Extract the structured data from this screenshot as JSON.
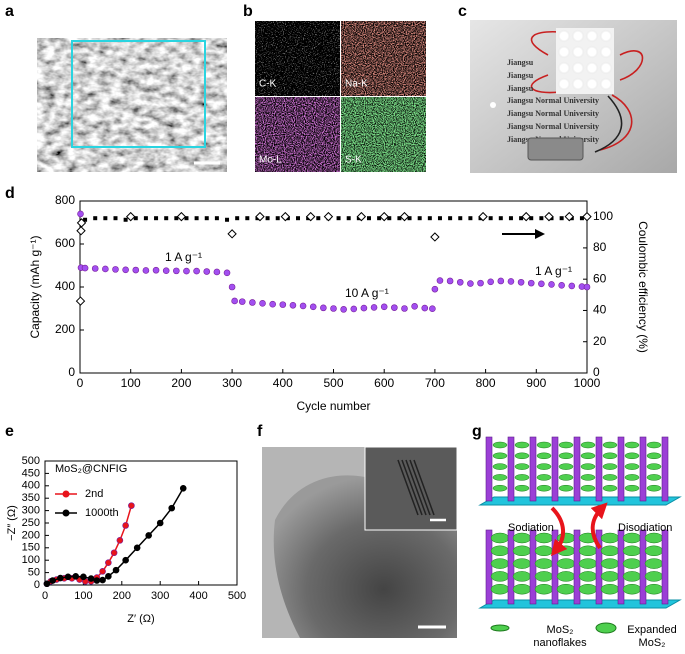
{
  "panels": {
    "labels": [
      "a",
      "b",
      "c",
      "d",
      "e",
      "f",
      "g"
    ],
    "b_maps": [
      "C-K",
      "Na-K",
      "Mo-L",
      "S-K"
    ],
    "c_photo_text": [
      "Jiangsu",
      "Jiangsu",
      "Jiangsu",
      "Jiangsu Normal University",
      "Jiangsu Normal University",
      "Jiangsu Normal University",
      "Jiangsu Normal University"
    ],
    "g_arrows": [
      "Sodiation",
      "Disodiation"
    ],
    "g_legend": [
      [
        "MoS₂",
        "nanoflakes"
      ],
      [
        "Expanded",
        "MoS₂"
      ]
    ]
  },
  "chart_data": [
    {
      "type": "scatter",
      "x_label": "Cycle number",
      "y_label": "Capacity (mAh g⁻¹)",
      "y2_label": "Coulombic efficiency (%)",
      "annotations": [
        "1 A g⁻¹",
        "10 A g⁻¹",
        "1 A g⁻¹"
      ],
      "xlim": [
        0,
        1000
      ],
      "xticks": [
        0,
        100,
        200,
        300,
        400,
        500,
        600,
        700,
        800,
        900,
        1000
      ],
      "ylim": [
        0,
        800
      ],
      "yticks": [
        0,
        200,
        400,
        600,
        800
      ],
      "y2lim": [
        0,
        110
      ],
      "y2ticks": [
        0,
        20,
        40,
        60,
        80,
        100
      ],
      "series": [
        {
          "color": "#a24ff0",
          "marker": "circle",
          "x": [
            1,
            2,
            10,
            30,
            50,
            70,
            90,
            110,
            130,
            150,
            170,
            190,
            210,
            230,
            250,
            270,
            290,
            300,
            305,
            320,
            340,
            360,
            380,
            400,
            420,
            440,
            460,
            480,
            500,
            520,
            540,
            560,
            580,
            600,
            620,
            640,
            660,
            680,
            695,
            700,
            710,
            730,
            750,
            770,
            790,
            810,
            830,
            850,
            870,
            890,
            910,
            930,
            950,
            970,
            990,
            1000
          ],
          "values": [
            740,
            490,
            488,
            486,
            484,
            482,
            480,
            479,
            477,
            478,
            476,
            475,
            474,
            474,
            472,
            470,
            466,
            400,
            335,
            332,
            328,
            324,
            320,
            318,
            315,
            312,
            308,
            303,
            300,
            296,
            298,
            302,
            305,
            308,
            304,
            300,
            310,
            302,
            299,
            390,
            430,
            428,
            422,
            416,
            418,
            424,
            428,
            426,
            422,
            418,
            415,
            412,
            408,
            405,
            402,
            400
          ]
        },
        {
          "color": "#000000",
          "marker": "square",
          "axis": "y2",
          "x": [
            10,
            30,
            50,
            70,
            90,
            110,
            130,
            150,
            170,
            190,
            210,
            230,
            250,
            270,
            290,
            310,
            330,
            350,
            370,
            390,
            410,
            430,
            450,
            470,
            490,
            510,
            530,
            550,
            570,
            590,
            610,
            630,
            650,
            670,
            690,
            710,
            730,
            750,
            770,
            790,
            810,
            830,
            850,
            870,
            890,
            910,
            930,
            950,
            970,
            990
          ],
          "values": [
            98,
            99,
            99,
            99,
            98,
            99,
            99,
            99,
            99,
            99,
            99,
            99,
            99,
            99,
            98,
            99,
            99,
            99,
            99,
            99,
            99,
            99,
            99,
            99,
            99,
            99,
            99,
            99,
            99,
            99,
            99,
            99,
            99,
            99,
            99,
            99,
            99,
            99,
            99,
            99,
            99,
            99,
            99,
            99,
            99,
            99,
            99,
            99,
            99,
            99
          ]
        },
        {
          "color": "#000000",
          "marker": "diamond-open",
          "axis": "y2",
          "x": [
            1,
            2,
            3,
            100,
            200,
            300,
            355,
            405,
            455,
            490,
            555,
            600,
            640,
            700,
            795,
            880,
            925,
            965,
            1000
          ],
          "values": [
            46,
            91,
            96,
            100,
            100,
            89,
            100,
            100,
            100,
            100,
            100,
            100,
            100,
            87,
            100,
            100,
            100,
            100,
            100
          ]
        }
      ]
    },
    {
      "type": "line",
      "x_label": "Z′ (Ω)",
      "y_label": "−Z″ (Ω)",
      "annotations": [
        "MoS₂@CNFIG"
      ],
      "legend": "upper left",
      "xlim": [
        0,
        500
      ],
      "xticks": [
        0,
        100,
        200,
        300,
        400,
        500
      ],
      "ylim": [
        0,
        500
      ],
      "yticks": [
        0,
        50,
        100,
        150,
        200,
        250,
        300,
        350,
        400,
        450,
        500
      ],
      "series": [
        {
          "name": "2nd",
          "color": "#e8141b",
          "marker": "circle",
          "x": [
            5,
            15,
            30,
            50,
            70,
            90,
            105,
            120,
            135,
            150,
            165,
            180,
            195,
            210,
            225
          ],
          "values": [
            5,
            15,
            22,
            27,
            27,
            22,
            15,
            15,
            30,
            55,
            90,
            130,
            180,
            240,
            320
          ]
        },
        {
          "name": "1000th",
          "color": "#000000",
          "marker": "circle",
          "x": [
            5,
            20,
            40,
            60,
            80,
            100,
            120,
            135,
            150,
            165,
            185,
            210,
            240,
            270,
            300,
            330,
            360
          ],
          "values": [
            5,
            18,
            28,
            33,
            35,
            33,
            26,
            18,
            20,
            35,
            60,
            100,
            150,
            200,
            250,
            310,
            390
          ]
        }
      ]
    }
  ]
}
